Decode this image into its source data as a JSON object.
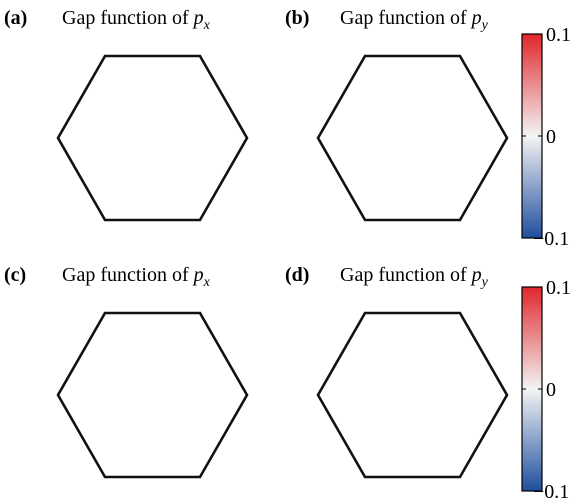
{
  "figure": {
    "panels": [
      {
        "id": "a",
        "label": "(a)",
        "title_prefix": "Gap function of ",
        "title_var": "p",
        "title_sub": "x",
        "kind": "px",
        "variant": "top"
      },
      {
        "id": "b",
        "label": "(b)",
        "title_prefix": "Gap function of ",
        "title_var": "p",
        "title_sub": "y",
        "kind": "py",
        "variant": "top"
      },
      {
        "id": "c",
        "label": "(c)",
        "title_prefix": "Gap function of ",
        "title_var": "p",
        "title_sub": "x",
        "kind": "px",
        "variant": "bottom"
      },
      {
        "id": "d",
        "label": "(d)",
        "title_prefix": "Gap function of ",
        "title_var": "p",
        "title_sub": "y",
        "kind": "py",
        "variant": "bottom"
      }
    ],
    "colorbars": [
      {
        "id": "top",
        "max_label": "0.1",
        "mid_label": "0",
        "min_label": "−0.1",
        "range": [
          -0.1,
          0.1
        ]
      },
      {
        "id": "bottom",
        "max_label": "0.1",
        "mid_label": "0",
        "min_label": "−0.1",
        "range": [
          -0.1,
          0.1
        ]
      }
    ],
    "colormap": {
      "negative": "#1f4e9e",
      "zero": "#f4f4f4",
      "positive": "#e0262c"
    }
  }
}
